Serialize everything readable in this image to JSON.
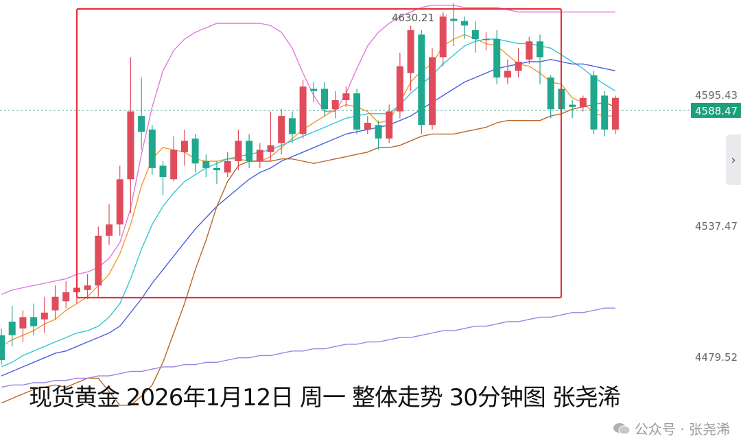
{
  "caption": "现货黄金 2026年1月12日 周一 整体走势 30分钟图 张尧浠",
  "watermark": {
    "channel": "公众号 · 张尧浠",
    "author": "张尧浠"
  },
  "side_tab_icon": "chevron-right-icon",
  "colors": {
    "up": "#e04c5c",
    "down": "#1fa88e",
    "ma_orange": "#f29a2e",
    "ma_cyan": "#30c6d6",
    "ma_blue": "#4a5ee0",
    "ma_brown": "#b5652b",
    "ma_purple": "#9b80e8",
    "boll_upper": "#e07adc",
    "highlight_box": "#e8303a",
    "price_tag": "#1aa07a"
  },
  "chart_data": {
    "type": "candlestick",
    "title": "",
    "y_axis_labels": [
      "4595.43",
      "4588.47",
      "4537.47",
      "4479.52"
    ],
    "y_axis_values": [
      4595.43,
      4588.47,
      4537.47,
      4479.52
    ],
    "current_price": 4588.47,
    "annotation_high": "4630.21",
    "grid": false,
    "candles": [
      [
        4489,
        4478,
        4492,
        4476
      ],
      [
        4495,
        4489,
        4502,
        4484
      ],
      [
        4492,
        4497,
        4500,
        4486
      ],
      [
        4497,
        4493,
        4503,
        4489
      ],
      [
        4496,
        4499,
        4506,
        4490
      ],
      [
        4500,
        4506,
        4511,
        4496
      ],
      [
        4504,
        4508,
        4513,
        4501
      ],
      [
        4508,
        4510,
        4515,
        4503
      ],
      [
        4509,
        4511,
        4516,
        4505
      ],
      [
        4511,
        4533,
        4537,
        4506
      ],
      [
        4533,
        4538,
        4547,
        4529
      ],
      [
        4538,
        4558,
        4564,
        4533
      ],
      [
        4558,
        4588,
        4612,
        4543
      ],
      [
        4586,
        4579,
        4603,
        4571
      ],
      [
        4580,
        4563,
        4582,
        4560
      ],
      [
        4564,
        4559,
        4566,
        4551
      ],
      [
        4558,
        4571,
        4577,
        4557
      ],
      [
        4570,
        4575,
        4580,
        4564
      ],
      [
        4576,
        4565,
        4578,
        4561
      ],
      [
        4566,
        4563,
        4569,
        4559
      ],
      [
        4563,
        4562,
        4566,
        4556
      ],
      [
        4561,
        4566,
        4570,
        4559
      ],
      [
        4566,
        4575,
        4580,
        4562
      ],
      [
        4575,
        4566,
        4578,
        4563
      ],
      [
        4566,
        4571,
        4574,
        4563
      ],
      [
        4570,
        4573,
        4588,
        4566
      ],
      [
        4574,
        4586,
        4589,
        4569
      ],
      [
        4585,
        4578,
        4588,
        4574
      ],
      [
        4578,
        4599,
        4602,
        4576
      ],
      [
        4598,
        4597,
        4601,
        4592
      ],
      [
        4598,
        4589,
        4601,
        4586
      ],
      [
        4589,
        4593,
        4597,
        4585
      ],
      [
        4593,
        4596,
        4599,
        4590
      ],
      [
        4596,
        4580,
        4598,
        4578
      ],
      [
        4580,
        4583,
        4586,
        4578
      ],
      [
        4582,
        4576,
        4584,
        4571
      ],
      [
        4576,
        4588,
        4591,
        4574
      ],
      [
        4588,
        4608,
        4614,
        4585
      ],
      [
        4605,
        4624,
        4626,
        4597
      ],
      [
        4622,
        4582,
        4624,
        4578
      ],
      [
        4582,
        4612,
        4616,
        4580
      ],
      [
        4612,
        4630,
        4632,
        4608
      ],
      [
        4629,
        4628,
        4636,
        4617
      ],
      [
        4628,
        4626,
        4630,
        4620
      ],
      [
        4624,
        4620,
        4628,
        4614
      ],
      [
        4620,
        4620,
        4623,
        4615
      ],
      [
        4620,
        4603,
        4624,
        4600
      ],
      [
        4603,
        4606,
        4611,
        4600
      ],
      [
        4606,
        4610,
        4616,
        4603
      ],
      [
        4611,
        4619,
        4621,
        4609
      ],
      [
        4619,
        4612,
        4622,
        4600
      ],
      [
        4603,
        4589,
        4604,
        4585
      ],
      [
        4598,
        4589,
        4600,
        4585
      ],
      [
        4591,
        4590,
        4593,
        4585
      ],
      [
        4590,
        4594,
        4595,
        4588
      ],
      [
        4604,
        4580,
        4606,
        4578
      ],
      [
        4595,
        4580,
        4597,
        4577
      ],
      [
        4580,
        4594,
        4595,
        4578
      ]
    ],
    "series": [
      {
        "color_key": "boll_upper",
        "values": [
          4507,
          4509,
          4510,
          4511,
          4512,
          4513,
          4514,
          4516,
          4517,
          4519,
          4523,
          4530,
          4545,
          4569,
          4590,
          4606,
          4615,
          4620,
          4623,
          4625,
          4627,
          4627,
          4627,
          4627,
          4627,
          4626,
          4623,
          4616,
          4605,
          4595,
          4588,
          4588,
          4596,
          4607,
          4617,
          4623,
          4627,
          4630,
          4632,
          4634,
          4635,
          4635,
          4635,
          4634,
          4634,
          4634,
          4634,
          4633,
          4632,
          4632,
          4632,
          4632,
          4632,
          4632,
          4632,
          4632,
          4632,
          4632
        ]
      },
      {
        "color_key": "ma_orange",
        "values": [
          4484,
          4487,
          4489,
          4491,
          4494,
          4496,
          4500,
          4503,
          4506,
          4511,
          4516,
          4525,
          4538,
          4555,
          4567,
          4572,
          4571,
          4570,
          4567,
          4566,
          4566,
          4567,
          4567,
          4566,
          4566,
          4568,
          4572,
          4576,
          4580,
          4583,
          4586,
          4589,
          4591,
          4590,
          4588,
          4583,
          4584,
          4592,
          4601,
          4606,
          4609,
          4617,
          4620,
          4622,
          4620,
          4618,
          4617,
          4613,
          4609,
          4608,
          4605,
          4601,
          4600,
          4594,
          4592,
          4587,
          4586,
          4586
        ]
      },
      {
        "color_key": "ma_cyan",
        "values": [
          4475,
          4477,
          4480,
          4482,
          4484,
          4486,
          4488,
          4490,
          4491,
          4493,
          4497,
          4503,
          4514,
          4527,
          4538,
          4546,
          4552,
          4557,
          4560,
          4563,
          4565,
          4567,
          4568,
          4569,
          4570,
          4571,
          4573,
          4575,
          4577,
          4579,
          4581,
          4583,
          4585,
          4586,
          4587,
          4587,
          4587,
          4591,
          4596,
          4600,
          4604,
          4609,
          4613,
          4617,
          4619,
          4620,
          4620,
          4619,
          4618,
          4618,
          4617,
          4616,
          4613,
          4610,
          4607,
          4603,
          4600,
          4597
        ]
      },
      {
        "color_key": "ma_blue",
        "values": [
          4471,
          4473,
          4475,
          4477,
          4479,
          4481,
          4482,
          4484,
          4486,
          4488,
          4490,
          4493,
          4499,
          4505,
          4512,
          4518,
          4524,
          4530,
          4536,
          4541,
          4546,
          4550,
          4554,
          4558,
          4561,
          4563,
          4566,
          4568,
          4570,
          4572,
          4574,
          4576,
          4578,
          4579,
          4580,
          4581,
          4582,
          4584,
          4586,
          4589,
          4592,
          4595,
          4598,
          4601,
          4603,
          4605,
          4607,
          4608,
          4609,
          4610,
          4610,
          4611,
          4610,
          4609,
          4609,
          4608,
          4607,
          4606
        ]
      },
      {
        "color_key": "ma_brown",
        "values": [
          4459,
          4461,
          4463,
          4465,
          4466,
          4467,
          4466,
          4468,
          4470,
          4470,
          4464,
          4458,
          4458,
          4462,
          4467,
          4477,
          4490,
          4503,
          4518,
          4531,
          4546,
          4557,
          4564,
          4566,
          4566,
          4566,
          4567,
          4567,
          4566,
          4565,
          4566,
          4567,
          4568,
          4569,
          4570,
          4572,
          4572,
          4573,
          4575,
          4577,
          4578,
          4578,
          4578,
          4579,
          4580,
          4581,
          4583,
          4584,
          4584,
          4584,
          4584,
          4586,
          4587,
          4589,
          4590,
          4591,
          4592,
          4590
        ]
      },
      {
        "color_key": "ma_purple",
        "values": [
          4466,
          4467,
          4467,
          4468,
          4468,
          4469,
          4469,
          4470,
          4470,
          4471,
          4471,
          4472,
          4473,
          4473,
          4474,
          4475,
          4475,
          4476,
          4476,
          4477,
          4477,
          4478,
          4479,
          4479,
          4480,
          4480,
          4481,
          4482,
          4482,
          4483,
          4483,
          4484,
          4485,
          4485,
          4486,
          4486,
          4487,
          4488,
          4488,
          4489,
          4490,
          4491,
          4491,
          4492,
          4493,
          4493,
          4494,
          4495,
          4495,
          4496,
          4497,
          4497,
          4498,
          4499,
          4499,
          4500,
          4501,
          4501
        ]
      }
    ]
  }
}
